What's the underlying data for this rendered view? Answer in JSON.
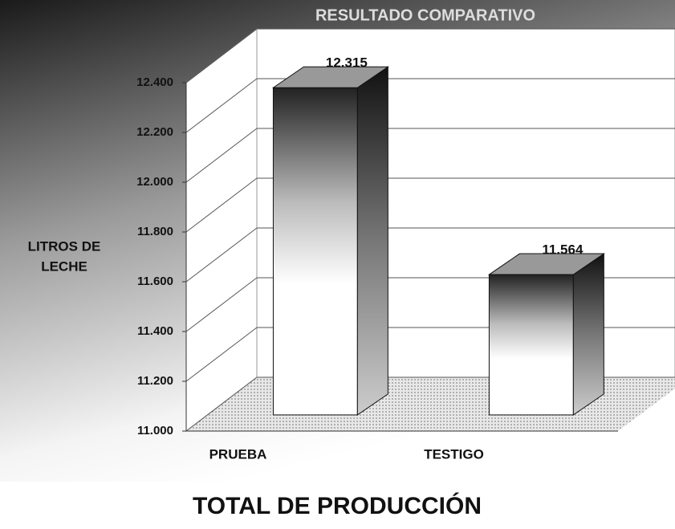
{
  "chart_data": {
    "type": "bar3d",
    "title": "RESULTADO COMPARATIVO",
    "ylabel": [
      "LITROS DE",
      "LECHE"
    ],
    "xlabel": "TOTAL DE PRODUCCIÓN",
    "categories": [
      "PRUEBA",
      "TESTIGO"
    ],
    "values": [
      12315,
      11564
    ],
    "value_labels": [
      "12.315",
      "11.564"
    ],
    "ylim": [
      11000,
      12400
    ],
    "yticks": [
      {
        "value": 11000,
        "label": "11.000"
      },
      {
        "value": 11200,
        "label": "11.200"
      },
      {
        "value": 11400,
        "label": "11.400"
      },
      {
        "value": 11600,
        "label": "11.600"
      },
      {
        "value": 11800,
        "label": "11.800"
      },
      {
        "value": 12000,
        "label": "12.000"
      },
      {
        "value": 12200,
        "label": "12.200"
      },
      {
        "value": 12400,
        "label": "12.400"
      }
    ],
    "grid": true
  }
}
